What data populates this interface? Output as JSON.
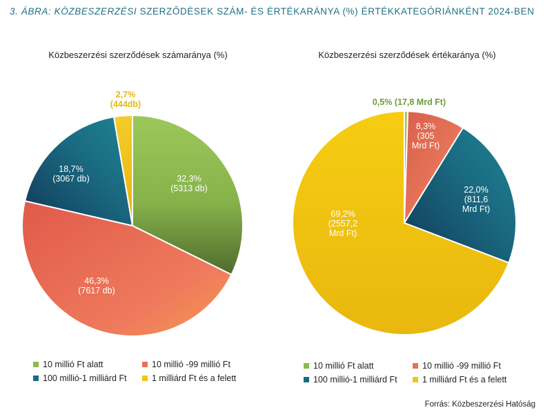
{
  "figure": {
    "title_prefix": "3. ÁBRA: KÖZBESZERZÉSI",
    "title_rest": " SZERZŐDÉSEK SZÁM- ÉS ÉRTÉKARÁNYA (%) ÉRTÉKKATEGÓRIÁNKÉNT 2024-BEN",
    "source": "Forrás: Közbeszerzési Hatóság"
  },
  "colors": {
    "cat1": "#8dba4e",
    "cat2": "#e8705a",
    "cat3": "#1a6b82",
    "cat4": "#f0c419",
    "title": "#1f6f85"
  },
  "legend": [
    {
      "label": "10 millió Ft alatt"
    },
    {
      "label": "10 millió -99 millió Ft"
    },
    {
      "label": "100 millió-1 milliárd Ft"
    },
    {
      "label": "1 milliárd Ft és a felett"
    }
  ],
  "chart_data": [
    {
      "type": "pie",
      "title": "Közbeszerzési szerződések számaránya (%)",
      "categories": [
        "10 millió Ft alatt",
        "10 millió -99 millió Ft",
        "100 millió-1 milliárd Ft",
        "1 milliárd Ft és a felett"
      ],
      "values": [
        32.3,
        46.3,
        18.7,
        2.7
      ],
      "data_labels": [
        [
          "32,3%",
          "(5313 db)"
        ],
        [
          "46,3%",
          "(7617 db)"
        ],
        [
          "18,7%",
          "(3067 db)"
        ],
        [
          "2,7%",
          "(444db)"
        ]
      ]
    },
    {
      "type": "pie",
      "title": "Közbeszerzési szerződések értékaránya (%)",
      "categories": [
        "10 millió Ft alatt",
        "10 millió -99 millió Ft",
        "100 millió-1 milliárd Ft",
        "1 milliárd Ft és a felett"
      ],
      "values": [
        0.5,
        8.3,
        22.0,
        69.2
      ],
      "data_labels": [
        [
          "0,5% (17,8 Mrd Ft)"
        ],
        [
          "8,3%",
          "(305",
          "Mrd Ft)"
        ],
        [
          "22,0%",
          "(811,6",
          "Mrd Ft)"
        ],
        [
          "69,2%",
          "(2557,2",
          "Mrd Ft)"
        ]
      ]
    }
  ]
}
